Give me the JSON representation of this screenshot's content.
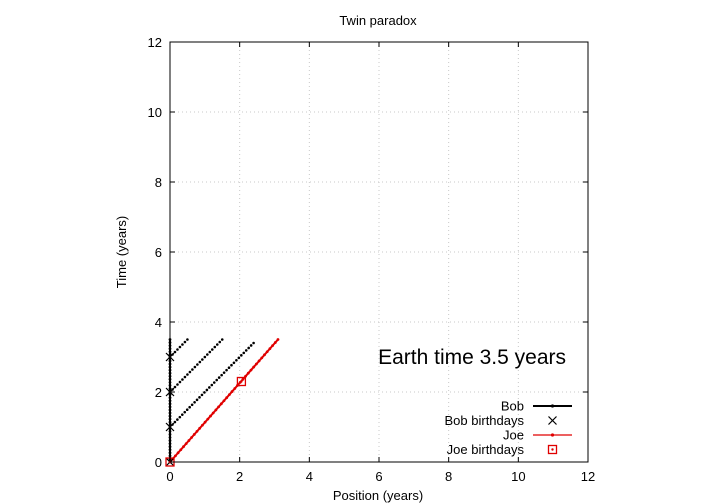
{
  "chart_data": {
    "type": "scatter",
    "title": "Twin paradox",
    "xlabel": "Position (years)",
    "ylabel": "Time (years)",
    "xlim": [
      0,
      12
    ],
    "ylim": [
      0,
      12
    ],
    "xticks": [
      "0",
      "2",
      "4",
      "6",
      "8",
      "10",
      "12"
    ],
    "yticks": [
      "0",
      "2",
      "4",
      "6",
      "8",
      "10",
      "12"
    ],
    "grid": true,
    "legend_position": "bottom-right",
    "annotation": "Earth time  3.5 years",
    "colors": {
      "bob": "#000000",
      "joe": "#e00000"
    },
    "series": [
      {
        "name": "Bob",
        "style": "line-points",
        "x": [
          0,
          0
        ],
        "y": [
          0,
          3.5
        ]
      },
      {
        "name": "Bob birthdays",
        "style": "cross",
        "x": [
          0,
          0,
          0,
          0
        ],
        "y": [
          0,
          1,
          2,
          3
        ]
      },
      {
        "name": "Joe",
        "style": "line-points",
        "x": [
          0,
          3.1
        ],
        "y": [
          0,
          3.5
        ]
      },
      {
        "name": "Joe birthdays",
        "style": "square",
        "x": [
          0,
          2.05
        ],
        "y": [
          0,
          2.3
        ]
      }
    ],
    "signal_lines": [
      {
        "x": [
          0,
          2.4
        ],
        "y": [
          1,
          3.4
        ]
      },
      {
        "x": [
          0,
          1.5
        ],
        "y": [
          2,
          3.5
        ]
      },
      {
        "x": [
          0,
          0.5
        ],
        "y": [
          3,
          3.5
        ]
      }
    ]
  }
}
